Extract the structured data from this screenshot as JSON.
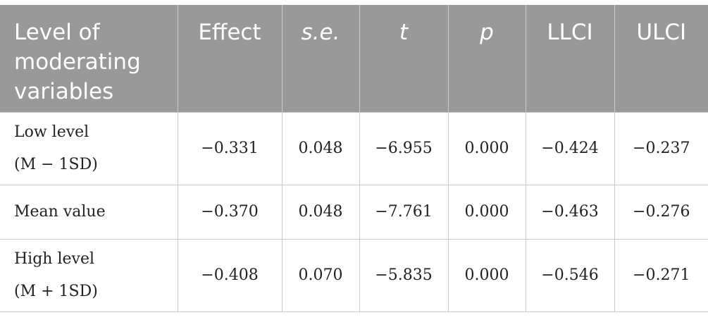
{
  "table": {
    "headers": {
      "level": "Level of moderating variables",
      "effect": "Effect",
      "se": "s.e.",
      "t": "t",
      "p": "p",
      "llci": "LLCI",
      "ulci": "ULCI"
    },
    "rows": [
      {
        "label_line1": "Low level",
        "label_line2": "(M − 1SD)",
        "effect": "−0.331",
        "se": "0.048",
        "t": "−6.955",
        "p": "0.000",
        "llci": "−0.424",
        "ulci": "−0.237"
      },
      {
        "label_line1": "Mean value",
        "label_line2": "",
        "effect": "−0.370",
        "se": "0.048",
        "t": "−7.761",
        "p": "0.000",
        "llci": "−0.463",
        "ulci": "−0.276"
      },
      {
        "label_line1": "High level",
        "label_line2": "(M + 1SD)",
        "effect": "−0.408",
        "se": "0.070",
        "t": "−5.835",
        "p": "0.000",
        "llci": "−0.546",
        "ulci": "−0.271"
      }
    ]
  },
  "colors": {
    "header_background": "#999999",
    "header_text": "#ffffff",
    "grid_lines": "#c9c9c9",
    "body_text": "#222222"
  }
}
